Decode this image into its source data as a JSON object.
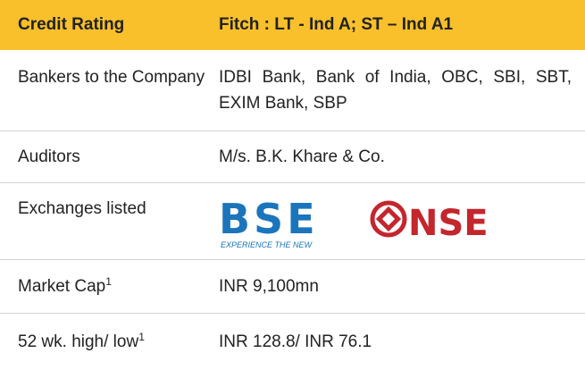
{
  "table": {
    "header": [
      "Credit Rating",
      "Fitch : LT - Ind A; ST – Ind A1"
    ],
    "rows": [
      {
        "label": "Bankers to the Company",
        "value": "IDBI Bank, Bank of India, OBC, SBI, SBT, EXIM Bank, SBP"
      },
      {
        "label": "Auditors",
        "value": "M/s. B.K. Khare & Co."
      },
      {
        "label": "Exchanges listed",
        "logos": {
          "bse": "BSE",
          "bse_tagline": "EXPERIENCE THE NEW",
          "nse": "NSE"
        }
      },
      {
        "label": "Market Cap",
        "sup": "1",
        "value": "INR 9,100mn"
      },
      {
        "label": "52 wk. high/ low",
        "sup": "1",
        "value": "INR 128.8/ INR 76.1"
      }
    ]
  }
}
